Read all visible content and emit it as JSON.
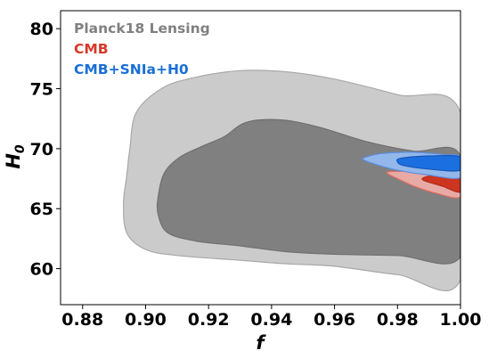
{
  "chart_data": {
    "type": "contour",
    "xlabel": "f",
    "ylabel": "H",
    "ylabel_subscript": "0",
    "xlim": [
      0.873,
      1.0
    ],
    "ylim": [
      57.0,
      81.5
    ],
    "xticks": [
      0.88,
      0.9,
      0.92,
      0.94,
      0.96,
      0.98,
      1.0
    ],
    "xtick_labels": [
      "0.88",
      "0.90",
      "0.92",
      "0.94",
      "0.96",
      "0.98",
      "1.00"
    ],
    "yticks": [
      60,
      65,
      70,
      75,
      80
    ],
    "ytick_labels": [
      "60",
      "65",
      "70",
      "75",
      "80"
    ],
    "legend_position": "top-left",
    "series": [
      {
        "name": "Planck18 Lensing",
        "color": "#808080",
        "contours": [
          {
            "level": "95%",
            "fill": "#cbcbcb",
            "stroke": "#a8a8a8",
            "points": [
              [
                0.905,
                75.0
              ],
              [
                0.915,
                75.9
              ],
              [
                0.93,
                76.5
              ],
              [
                0.945,
                76.4
              ],
              [
                0.96,
                75.8
              ],
              [
                0.98,
                74.5
              ],
              [
                1.0,
                73.0
              ],
              [
                1.0,
                59.1
              ],
              [
                0.98,
                59.5
              ],
              [
                0.96,
                60.2
              ],
              [
                0.945,
                60.4
              ],
              [
                0.93,
                60.7
              ],
              [
                0.91,
                61.1
              ],
              [
                0.9,
                61.6
              ],
              [
                0.894,
                63.0
              ],
              [
                0.893,
                65.5
              ],
              [
                0.894,
                67.7
              ],
              [
                0.895,
                70.0
              ],
              [
                0.897,
                73.0
              ]
            ]
          },
          {
            "level": "68%",
            "fill": "#808080",
            "stroke": "#707070",
            "points": [
              [
                0.918,
                70.2
              ],
              [
                0.925,
                71.0
              ],
              [
                0.932,
                72.2
              ],
              [
                0.943,
                72.4
              ],
              [
                0.955,
                71.8
              ],
              [
                0.97,
                70.6
              ],
              [
                0.985,
                69.8
              ],
              [
                1.0,
                69.4
              ],
              [
                1.0,
                61.0
              ],
              [
                0.98,
                61.1
              ],
              [
                0.96,
                61.2
              ],
              [
                0.945,
                61.4
              ],
              [
                0.93,
                61.9
              ],
              [
                0.916,
                62.3
              ],
              [
                0.907,
                63.0
              ],
              [
                0.904,
                64.5
              ],
              [
                0.904,
                66.0
              ],
              [
                0.906,
                68.0
              ],
              [
                0.911,
                69.3
              ]
            ]
          }
        ]
      },
      {
        "name": "CMB",
        "color": "#d63a2a",
        "contours": [
          {
            "level": "95%",
            "fill": "#e8aaa5",
            "stroke": "#e06b60",
            "points": [
              [
                0.978,
                68.1
              ],
              [
                0.99,
                68.1
              ],
              [
                1.0,
                68.1
              ],
              [
                1.0,
                66.0
              ],
              [
                0.992,
                66.3
              ],
              [
                0.985,
                66.9
              ],
              [
                0.98,
                67.5
              ],
              [
                0.977,
                67.9
              ]
            ]
          },
          {
            "level": "68%",
            "fill": "#cd3520",
            "stroke": "#b12a18",
            "points": [
              [
                0.99,
                67.7
              ],
              [
                0.996,
                67.8
              ],
              [
                1.0,
                67.8
              ],
              [
                1.0,
                66.4
              ],
              [
                0.994,
                66.9
              ],
              [
                0.988,
                67.4
              ]
            ]
          }
        ]
      },
      {
        "name": "CMB+SNIa+H0",
        "color": "#1a6fd6",
        "contours": [
          {
            "level": "95%",
            "fill": "#93b7ea",
            "stroke": "#5b8ee0",
            "points": [
              [
                0.97,
                69.3
              ],
              [
                0.975,
                69.6
              ],
              [
                0.985,
                69.7
              ],
              [
                0.995,
                69.5
              ],
              [
                1.0,
                69.3
              ],
              [
                1.0,
                67.6
              ],
              [
                0.99,
                67.8
              ],
              [
                0.98,
                68.2
              ],
              [
                0.973,
                68.7
              ],
              [
                0.969,
                69.1
              ]
            ]
          },
          {
            "level": "68%",
            "fill": "#1c6fe0",
            "stroke": "#1456b8",
            "points": [
              [
                0.981,
                69.2
              ],
              [
                0.99,
                69.4
              ],
              [
                1.0,
                69.3
              ],
              [
                1.0,
                68.2
              ],
              [
                0.99,
                68.3
              ],
              [
                0.982,
                68.6
              ],
              [
                0.98,
                68.9
              ]
            ]
          }
        ]
      }
    ]
  }
}
